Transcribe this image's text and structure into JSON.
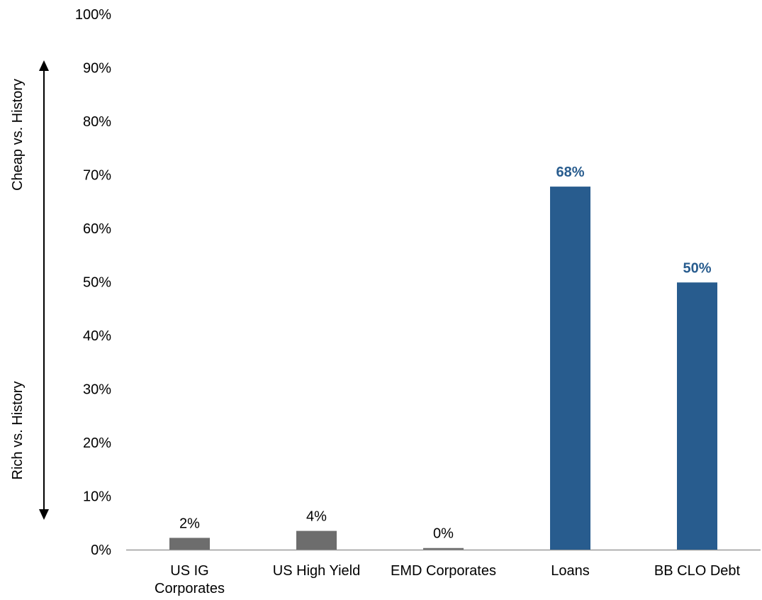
{
  "chart_data": {
    "type": "bar",
    "categories": [
      [
        "US IG",
        "Corporates"
      ],
      [
        "US High Yield"
      ],
      [
        "EMD Corporates"
      ],
      [
        "Loans"
      ],
      [
        "BB CLO Debt"
      ]
    ],
    "values": [
      2.2,
      3.5,
      0.3,
      67.8,
      49.9
    ],
    "data_labels": [
      "2%",
      "4%",
      "0%",
      "68%",
      "50%"
    ],
    "bar_colors": [
      "#6d6d6d",
      "#6d6d6d",
      "#6d6d6d",
      "#285c8e",
      "#285c8e"
    ],
    "label_colors": [
      "#000000",
      "#000000",
      "#000000",
      "#285c8e",
      "#285c8e"
    ],
    "highlighted": [
      false,
      false,
      false,
      true,
      true
    ],
    "ylim": [
      0,
      100
    ],
    "yticks": [
      0,
      10,
      20,
      30,
      40,
      50,
      60,
      70,
      80,
      90,
      100
    ],
    "ytick_labels": [
      "0%",
      "10%",
      "20%",
      "30%",
      "40%",
      "50%",
      "60%",
      "70%",
      "80%",
      "90%",
      "100%"
    ],
    "grid": false,
    "annotations": {
      "top_label": "Cheap vs. History",
      "bottom_label": "Rich vs. History"
    }
  }
}
